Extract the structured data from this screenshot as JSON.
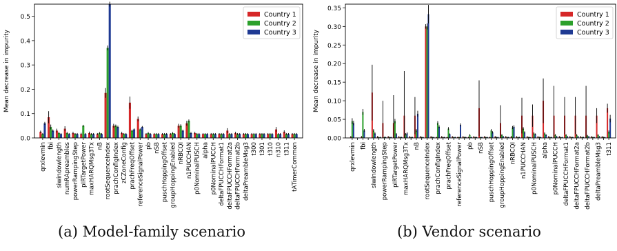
{
  "captions": [
    "(a) Model-family scenario",
    "(b) Vendor scenario"
  ],
  "chart_data": [
    {
      "type": "bar",
      "ylabel": "Mean decrease in impurity",
      "ylim": [
        0,
        0.55
      ],
      "yticks": [
        0.0,
        0.1,
        0.2,
        0.3,
        0.4,
        0.5
      ],
      "ytick_labels": [
        "0.0",
        "0.1",
        "0.2",
        "0.3",
        "0.4",
        "0.5"
      ],
      "legend": "top-right",
      "tick_labels": [
        "qrxlevmin",
        "fbi",
        "siwindowlength",
        "numRApreambles",
        "powerRampingStep",
        "pIRTargetPower",
        "maxHARQMsg3Tx",
        "nB",
        "rootSequenceIndex",
        "prachConfigIndex",
        "zCZoneConfig",
        "prachFreqOffset",
        "referenceSignalPower",
        "pb",
        "nSB",
        "puschHoppingOffset",
        "groupHoppingEnabled",
        "nRBCQI",
        "n1PUCCHAN",
        "p0NominalPUSCH",
        "alpha",
        "p0NominalPUCCH",
        "deltaFPUCCHFormat1",
        "deltaFPUCCHFormat2a",
        "deltaFPUCCHFormat2b",
        "deltaPreambleMsg3",
        "t300",
        "t301",
        "t310",
        "n310",
        "t311",
        "tATimerCommon"
      ],
      "categories": [
        "qrxlevmin",
        "fbi",
        "siwindowlength",
        "numRApreambles",
        "powerRampingStep",
        "pIRTargetPower",
        "maxHARQMsg3Tx",
        "nB",
        "rootSequenceIndex",
        "prachConfigIndex",
        "zCZoneConfig",
        "prachFreqOffset",
        "referenceSignalPower",
        "pb",
        "nSB",
        "puschHoppingOffset",
        "groupHoppingEnabled",
        "nRBCQI",
        "n1PUCCHAN",
        "p0NominalPUSCH",
        "alpha",
        "p0NominalPUCCH",
        "deltaFPUCCHFormat1",
        "deltaFPUCCHFormat2a",
        "deltaFPUCCHFormat2b",
        "deltaPreambleMsg3",
        "t300",
        "t301",
        "t310",
        "n310",
        "t311",
        "tATimerCommon"
      ],
      "series": [
        {
          "name": "Country 1",
          "color": "#d62728",
          "values": [
            0.025,
            0.085,
            0.03,
            0.038,
            0.02,
            0.016,
            0.02,
            0.016,
            0.185,
            0.05,
            0.02,
            0.145,
            0.078,
            0.016,
            0.016,
            0.016,
            0.016,
            0.05,
            0.06,
            0.02,
            0.016,
            0.016,
            0.016,
            0.03,
            0.02,
            0.016,
            0.016,
            0.016,
            0.016,
            0.035,
            0.025,
            0.016
          ],
          "errors": [
            0.005,
            0.025,
            0.008,
            0.01,
            0.005,
            0.005,
            0.006,
            0.004,
            0.02,
            0.008,
            0.005,
            0.025,
            0.01,
            0.004,
            0.004,
            0.004,
            0.004,
            0.008,
            0.01,
            0.005,
            0.004,
            0.004,
            0.004,
            0.01,
            0.005,
            0.004,
            0.004,
            0.004,
            0.004,
            0.01,
            0.006,
            0.004
          ]
        },
        {
          "name": "Country 2",
          "color": "#2ca02c",
          "values": [
            0.016,
            0.045,
            0.02,
            0.02,
            0.016,
            0.05,
            0.016,
            0.02,
            0.37,
            0.05,
            0.016,
            0.03,
            0.035,
            0.02,
            0.016,
            0.016,
            0.02,
            0.05,
            0.07,
            0.016,
            0.016,
            0.016,
            0.016,
            0.016,
            0.016,
            0.016,
            0.016,
            0.016,
            0.016,
            0.016,
            0.016,
            0.016
          ],
          "errors": [
            0.004,
            0.01,
            0.005,
            0.005,
            0.004,
            0.004,
            0.004,
            0.004,
            0.01,
            0.005,
            0.004,
            0.004,
            0.004,
            0.004,
            0.004,
            0.004,
            0.004,
            0.006,
            0.006,
            0.004,
            0.004,
            0.004,
            0.004,
            0.004,
            0.004,
            0.004,
            0.004,
            0.004,
            0.004,
            0.004,
            0.004,
            0.004
          ]
        },
        {
          "name": "Country 3",
          "color": "#1f3a93",
          "values": [
            0.06,
            0.03,
            0.016,
            0.016,
            0.016,
            0.016,
            0.016,
            0.016,
            0.55,
            0.045,
            0.016,
            0.035,
            0.045,
            0.016,
            0.016,
            0.016,
            0.016,
            0.03,
            0.02,
            0.016,
            0.016,
            0.016,
            0.016,
            0.016,
            0.016,
            0.016,
            0.016,
            0.016,
            0.016,
            0.016,
            0.016,
            0.016
          ],
          "errors": [
            0.006,
            0.005,
            0.004,
            0.004,
            0.004,
            0.004,
            0.004,
            0.004,
            0.01,
            0.005,
            0.004,
            0.004,
            0.004,
            0.004,
            0.004,
            0.004,
            0.004,
            0.004,
            0.004,
            0.004,
            0.004,
            0.004,
            0.004,
            0.004,
            0.004,
            0.004,
            0.004,
            0.004,
            0.004,
            0.004,
            0.004,
            0.004
          ]
        }
      ]
    },
    {
      "type": "bar",
      "ylabel": "Mean decrease in impurity",
      "ylim": [
        0,
        0.36
      ],
      "yticks": [
        0.0,
        0.05,
        0.1,
        0.15,
        0.2,
        0.25,
        0.3,
        0.35
      ],
      "ytick_labels": [
        "0.00",
        "0.05",
        "0.10",
        "0.15",
        "0.20",
        "0.25",
        "0.30",
        "0.35"
      ],
      "legend": "top-right",
      "tick_labels": [
        "qrxlevmin",
        "fbi",
        "siwindowlength",
        "powerRampingStep",
        "pIRTargetPower",
        "maxHARQMsg3Tx",
        "nB",
        "rootSequenceIndex",
        "prachConfigIndex",
        "prachFreqOffset",
        "referenceSignalPower",
        "pb",
        "nSB",
        "puschHoppingOffset",
        "groupHoppingEnabled",
        "nRBCQI",
        "n1PUCCHAN",
        "p0NominalPUSCH",
        "alpha",
        "p0NominalPUCCH",
        "deltaFPUCCHFormat1",
        "deltaFPUCCHFormat2a",
        "deltaFPUCCHFormat2b",
        "deltaPreambleMsg3",
        "t311"
      ],
      "categories": [
        "qrxlevmin",
        "_c1",
        "fbi",
        "_c3",
        "siwindowlength",
        "_c5",
        "powerRampingStep",
        "_c7",
        "pIRTargetPower",
        "_c9",
        "maxHARQMsg3Tx",
        "_c11",
        "nB",
        "_c13",
        "rootSequenceIndex",
        "_c15",
        "prachConfigIndex",
        "_c17",
        "prachFreqOffset",
        "_c19",
        "referenceSignalPower",
        "_c21",
        "pb",
        "_c23",
        "nSB",
        "_c25",
        "puschHoppingOffset",
        "_c27",
        "groupHoppingEnabled",
        "_c29",
        "nRBCQI",
        "_c31",
        "n1PUCCHAN",
        "_c33",
        "p0NominalPUSCH",
        "_c35",
        "alpha",
        "_c37",
        "p0NominalPUCCH",
        "_c39",
        "deltaFPUCCHFormat1",
        "_c41",
        "deltaFPUCCHFormat2a",
        "_c43",
        "deltaFPUCCHFormat2b",
        "_c45",
        "deltaPreambleMsg3",
        "_c47",
        "t311"
      ],
      "series": [
        {
          "name": "Country 1",
          "color": "#d62728",
          "values": [
            0.003,
            0.001,
            0.003,
            0.001,
            0.122,
            0.003,
            0.04,
            0.003,
            0.04,
            0.003,
            0.06,
            0.003,
            0.06,
            0.003,
            0.3,
            0.003,
            0.002,
            0.003,
            0.002,
            0.003,
            0.002,
            0.003,
            0.002,
            0.003,
            0.08,
            0.003,
            0.002,
            0.003,
            0.04,
            0.003,
            0.003,
            0.003,
            0.06,
            0.003,
            0.06,
            0.003,
            0.1,
            0.003,
            0.06,
            0.003,
            0.06,
            0.003,
            0.06,
            0.003,
            0.06,
            0.003,
            0.06,
            0.003,
            0.08
          ],
          "errors": [
            0.002,
            0.0,
            0.002,
            0.0,
            0.075,
            0.002,
            0.06,
            0.002,
            0.075,
            0.002,
            0.12,
            0.002,
            0.05,
            0.002,
            0.006,
            0.002,
            0.001,
            0.002,
            0.001,
            0.002,
            0.001,
            0.002,
            0.001,
            0.002,
            0.075,
            0.002,
            0.001,
            0.002,
            0.048,
            0.002,
            0.002,
            0.002,
            0.048,
            0.002,
            0.03,
            0.002,
            0.06,
            0.002,
            0.08,
            0.002,
            0.05,
            0.002,
            0.05,
            0.002,
            0.08,
            0.002,
            0.02,
            0.002,
            0.012
          ]
        },
        {
          "name": "Country 2",
          "color": "#2ca02c",
          "values": [
            0.045,
            0.001,
            0.07,
            0.001,
            0.02,
            0.002,
            0.002,
            0.002,
            0.045,
            0.002,
            0.01,
            0.002,
            0.02,
            0.002,
            0.3,
            0.002,
            0.04,
            0.002,
            0.025,
            0.002,
            0.002,
            0.002,
            0.008,
            0.002,
            0.002,
            0.002,
            0.02,
            0.002,
            0.008,
            0.002,
            0.028,
            0.002,
            0.025,
            0.002,
            0.012,
            0.002,
            0.012,
            0.002,
            0.008,
            0.002,
            0.008,
            0.002,
            0.008,
            0.002,
            0.006,
            0.002,
            0.008,
            0.002,
            0.016
          ],
          "errors": [
            0.008,
            0.0,
            0.008,
            0.0,
            0.004,
            0.001,
            0.001,
            0.001,
            0.006,
            0.001,
            0.003,
            0.001,
            0.004,
            0.001,
            0.008,
            0.001,
            0.005,
            0.001,
            0.004,
            0.001,
            0.001,
            0.001,
            0.002,
            0.001,
            0.001,
            0.001,
            0.004,
            0.001,
            0.002,
            0.001,
            0.004,
            0.001,
            0.004,
            0.001,
            0.003,
            0.001,
            0.003,
            0.001,
            0.002,
            0.001,
            0.002,
            0.001,
            0.002,
            0.001,
            0.002,
            0.001,
            0.002,
            0.001,
            0.004
          ]
        },
        {
          "name": "Country 3",
          "color": "#1f3a93",
          "values": [
            0.04,
            0.001,
            0.02,
            0.001,
            0.012,
            0.002,
            0.002,
            0.002,
            0.01,
            0.002,
            0.012,
            0.002,
            0.065,
            0.002,
            0.333,
            0.002,
            0.03,
            0.002,
            0.01,
            0.002,
            0.035,
            0.002,
            0.002,
            0.002,
            0.002,
            0.002,
            0.015,
            0.002,
            0.004,
            0.002,
            0.03,
            0.002,
            0.015,
            0.002,
            0.01,
            0.002,
            0.008,
            0.002,
            0.004,
            0.002,
            0.004,
            0.002,
            0.004,
            0.002,
            0.004,
            0.002,
            0.004,
            0.002,
            0.052
          ],
          "errors": [
            0.006,
            0.0,
            0.004,
            0.0,
            0.003,
            0.001,
            0.001,
            0.001,
            0.003,
            0.001,
            0.003,
            0.001,
            0.008,
            0.001,
            0.025,
            0.001,
            0.004,
            0.001,
            0.002,
            0.001,
            0.004,
            0.001,
            0.001,
            0.001,
            0.001,
            0.001,
            0.003,
            0.001,
            0.001,
            0.001,
            0.004,
            0.001,
            0.003,
            0.001,
            0.002,
            0.001,
            0.002,
            0.001,
            0.001,
            0.001,
            0.001,
            0.001,
            0.001,
            0.001,
            0.001,
            0.001,
            0.001,
            0.001,
            0.01
          ]
        }
      ]
    }
  ]
}
